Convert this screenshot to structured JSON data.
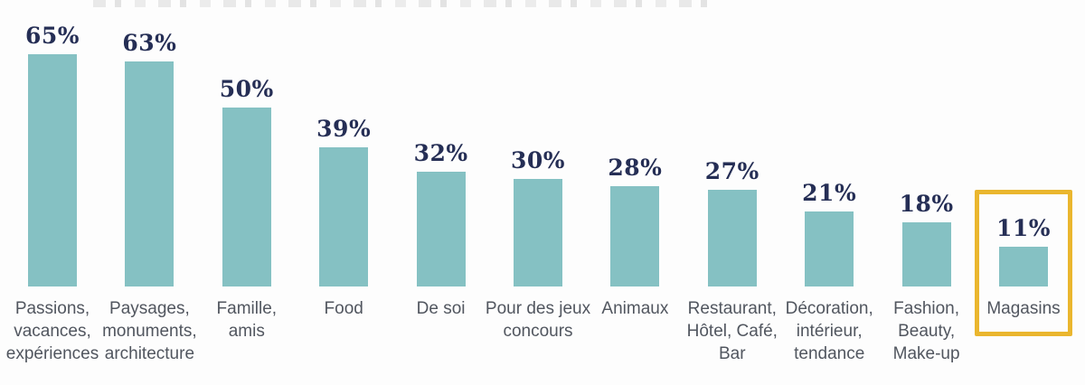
{
  "page": {
    "background": "#fdfdfd"
  },
  "colors": {
    "bar": "#85c1c3",
    "value_label": "#252e55",
    "category_label": "#51565f",
    "highlight_box": "#eab62e"
  },
  "chart_data": {
    "type": "bar",
    "title": "",
    "xlabel": "",
    "ylabel": "",
    "ylim": [
      0,
      70
    ],
    "grid": false,
    "legend": false,
    "orientation": "vertical",
    "categories": [
      "Passions,\nvacances,\nexpériences",
      "Paysages,\nmonuments,\narchitecture",
      "Famille,\namis",
      "Food",
      "De soi",
      "Pour des jeux\nconcours",
      "Animaux",
      "Restaurant,\nHôtel, Café,\nBar",
      "Décoration,\nintérieur,\ntendance",
      "Fashion,\nBeauty,\nMake-up",
      "Magasins"
    ],
    "values": [
      65,
      63,
      50,
      39,
      32,
      30,
      28,
      27,
      21,
      18,
      11
    ],
    "display_values": [
      "65%",
      "63%",
      "50%",
      "39%",
      "32%",
      "30%",
      "28%",
      "27%",
      "21%",
      "18%",
      "11%"
    ],
    "highlight": {
      "category": "Magasins",
      "index": 10,
      "box_color": "#eab62e"
    }
  }
}
